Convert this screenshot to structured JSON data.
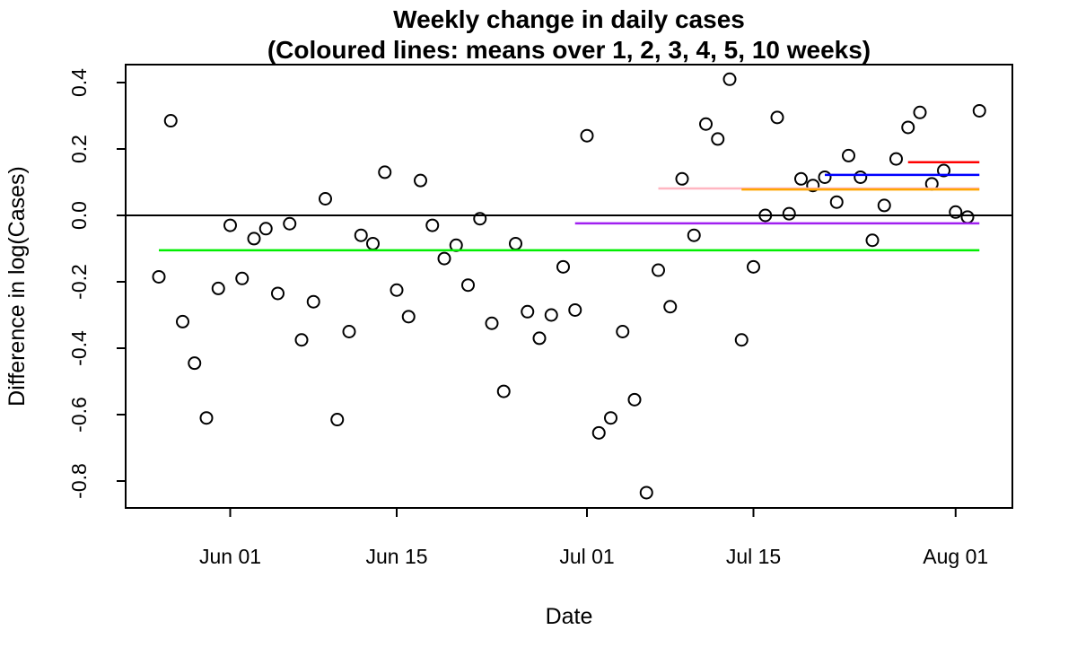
{
  "chart_data": {
    "type": "scatter",
    "title": "Weekly change in daily cases",
    "subtitle": "(Coloured lines: means over 1, 2, 3, 4, 5, 10 weeks)",
    "xlabel": "Date",
    "ylabel": "Difference in log(Cases)",
    "ylim": [
      -0.88,
      0.45
    ],
    "x_range_days": [
      -2.8,
      71.8
    ],
    "x_start_date": "May 26",
    "grid": false,
    "legend": "none (described in subtitle)",
    "zero_line_value": 0.0,
    "point_style": "open-circle",
    "y_ticks": [
      {
        "label": "0.4",
        "value": 0.4
      },
      {
        "label": "0.2",
        "value": 0.2
      },
      {
        "label": "0.0",
        "value": 0.0
      },
      {
        "label": "-0.2",
        "value": -0.2
      },
      {
        "label": "-0.4",
        "value": -0.4
      },
      {
        "label": "-0.6",
        "value": -0.6
      },
      {
        "label": "-0.8",
        "value": -0.8
      }
    ],
    "x_ticks": [
      {
        "label": "Jun 01",
        "day": 6
      },
      {
        "label": "Jun 15",
        "day": 20
      },
      {
        "label": "Jul 01",
        "day": 36
      },
      {
        "label": "Jul 15",
        "day": 50
      },
      {
        "label": "Aug 01",
        "day": 67
      }
    ],
    "points": [
      {
        "date": "May 26",
        "value": -0.185
      },
      {
        "date": "May 27",
        "value": 0.285
      },
      {
        "date": "May 28",
        "value": -0.32
      },
      {
        "date": "May 29",
        "value": -0.445
      },
      {
        "date": "May 30",
        "value": -0.61
      },
      {
        "date": "May 31",
        "value": -0.22
      },
      {
        "date": "Jun 01",
        "value": -0.03
      },
      {
        "date": "Jun 02",
        "value": -0.19
      },
      {
        "date": "Jun 03",
        "value": -0.07
      },
      {
        "date": "Jun 04",
        "value": -0.04
      },
      {
        "date": "Jun 05",
        "value": -0.235
      },
      {
        "date": "Jun 06",
        "value": -0.025
      },
      {
        "date": "Jun 07",
        "value": -0.375
      },
      {
        "date": "Jun 08",
        "value": -0.26
      },
      {
        "date": "Jun 09",
        "value": 0.05
      },
      {
        "date": "Jun 10",
        "value": -0.615
      },
      {
        "date": "Jun 11",
        "value": -0.35
      },
      {
        "date": "Jun 12",
        "value": -0.06
      },
      {
        "date": "Jun 13",
        "value": -0.085
      },
      {
        "date": "Jun 14",
        "value": 0.13
      },
      {
        "date": "Jun 15",
        "value": -0.225
      },
      {
        "date": "Jun 16",
        "value": -0.305
      },
      {
        "date": "Jun 17",
        "value": 0.105
      },
      {
        "date": "Jun 18",
        "value": -0.03
      },
      {
        "date": "Jun 19",
        "value": -0.13
      },
      {
        "date": "Jun 20",
        "value": -0.09
      },
      {
        "date": "Jun 21",
        "value": -0.21
      },
      {
        "date": "Jun 22",
        "value": -0.01
      },
      {
        "date": "Jun 23",
        "value": -0.325
      },
      {
        "date": "Jun 24",
        "value": -0.53
      },
      {
        "date": "Jun 25",
        "value": -0.085
      },
      {
        "date": "Jun 26",
        "value": -0.29
      },
      {
        "date": "Jun 27",
        "value": -0.37
      },
      {
        "date": "Jun 28",
        "value": -0.3
      },
      {
        "date": "Jun 29",
        "value": -0.155
      },
      {
        "date": "Jun 30",
        "value": -0.285
      },
      {
        "date": "Jul 01",
        "value": 0.24
      },
      {
        "date": "Jul 02",
        "value": -0.655
      },
      {
        "date": "Jul 03",
        "value": -0.61
      },
      {
        "date": "Jul 04",
        "value": -0.35
      },
      {
        "date": "Jul 05",
        "value": -0.555
      },
      {
        "date": "Jul 06",
        "value": -0.835
      },
      {
        "date": "Jul 07",
        "value": -0.165
      },
      {
        "date": "Jul 08",
        "value": -0.275
      },
      {
        "date": "Jul 09",
        "value": 0.11
      },
      {
        "date": "Jul 10",
        "value": -0.06
      },
      {
        "date": "Jul 11",
        "value": 0.275
      },
      {
        "date": "Jul 12",
        "value": 0.23
      },
      {
        "date": "Jul 13",
        "value": 0.41
      },
      {
        "date": "Jul 14",
        "value": -0.375
      },
      {
        "date": "Jul 15",
        "value": -0.155
      },
      {
        "date": "Jul 16",
        "value": 0.0
      },
      {
        "date": "Jul 17",
        "value": 0.295
      },
      {
        "date": "Jul 18",
        "value": 0.005
      },
      {
        "date": "Jul 19",
        "value": 0.11
      },
      {
        "date": "Jul 20",
        "value": 0.09
      },
      {
        "date": "Jul 21",
        "value": 0.115
      },
      {
        "date": "Jul 22",
        "value": 0.04
      },
      {
        "date": "Jul 23",
        "value": 0.18
      },
      {
        "date": "Jul 24",
        "value": 0.115
      },
      {
        "date": "Jul 25",
        "value": -0.075
      },
      {
        "date": "Jul 26",
        "value": 0.03
      },
      {
        "date": "Jul 27",
        "value": 0.17
      },
      {
        "date": "Jul 28",
        "value": 0.265
      },
      {
        "date": "Jul 29",
        "value": 0.31
      },
      {
        "date": "Jul 30",
        "value": 0.095
      },
      {
        "date": "Jul 31",
        "value": 0.135
      },
      {
        "date": "Aug 01",
        "value": 0.01
      },
      {
        "date": "Aug 02",
        "value": -0.005
      },
      {
        "date": "Aug 03",
        "value": 0.315
      }
    ],
    "mean_lines": [
      {
        "weeks": 10,
        "color_name": "green",
        "color": "#00EE00",
        "start_date": "May 26",
        "end_date": "Aug 03",
        "start_day": 0,
        "end_day": 69,
        "value": -0.105
      },
      {
        "weeks": 5,
        "color_name": "purple",
        "color": "#A020F0",
        "start_date": "Jun 30",
        "end_date": "Aug 03",
        "start_day": 35,
        "end_day": 69,
        "value": -0.024
      },
      {
        "weeks": 4,
        "color_name": "pink",
        "color": "#FFB6C1",
        "start_date": "Jul 07",
        "end_date": "Aug 03",
        "start_day": 42,
        "end_day": 69,
        "value": 0.081
      },
      {
        "weeks": 3,
        "color_name": "orange",
        "color": "#FFA500",
        "start_date": "Jul 14",
        "end_date": "Aug 03",
        "start_day": 49,
        "end_day": 69,
        "value": 0.078
      },
      {
        "weeks": 2,
        "color_name": "blue",
        "color": "#0000FF",
        "start_date": "Jul 21",
        "end_date": "Aug 03",
        "start_day": 56,
        "end_day": 69,
        "value": 0.122
      },
      {
        "weeks": 1,
        "color_name": "red",
        "color": "#FF0000",
        "start_date": "Jul 28",
        "end_date": "Aug 03",
        "start_day": 63,
        "end_day": 69,
        "value": 0.16
      }
    ],
    "colors": {
      "points": "#000000",
      "zero_line": "#000000",
      "box": "#000000",
      "background": "#ffffff"
    }
  }
}
